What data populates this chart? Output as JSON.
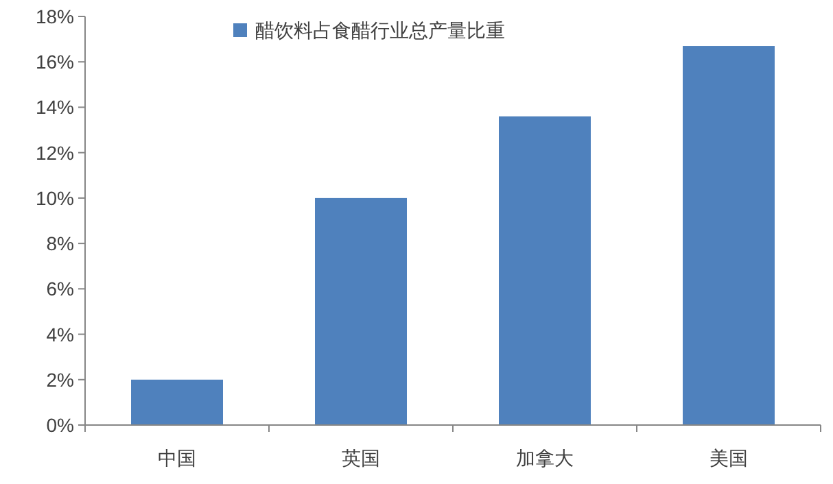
{
  "chart_data": {
    "type": "bar",
    "categories": [
      "中国",
      "英国",
      "加拿大",
      "美国"
    ],
    "series": [
      {
        "name": "醋饮料占食醋行业总产量比重",
        "color": "#4f81bd",
        "values": [
          2,
          10,
          13.6,
          16.7
        ]
      }
    ],
    "ylim": [
      0,
      18
    ],
    "yticks": [
      {
        "value": 0,
        "label": "0%"
      },
      {
        "value": 2,
        "label": "2%"
      },
      {
        "value": 4,
        "label": "4%"
      },
      {
        "value": 6,
        "label": "6%"
      },
      {
        "value": 8,
        "label": "8%"
      },
      {
        "value": 10,
        "label": "10%"
      },
      {
        "value": 12,
        "label": "12%"
      },
      {
        "value": 14,
        "label": "14%"
      },
      {
        "value": 16,
        "label": "16%"
      },
      {
        "value": 18,
        "label": "18%"
      }
    ],
    "grid": false,
    "legend": "top left"
  }
}
